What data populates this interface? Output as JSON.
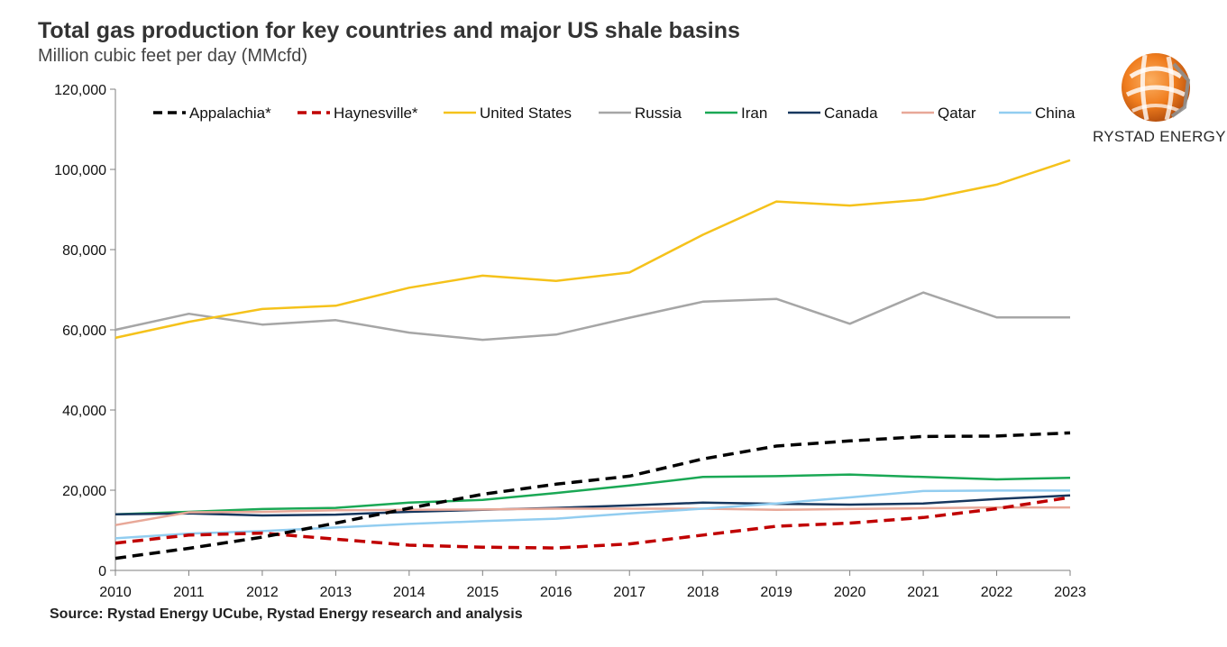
{
  "chart_data": {
    "type": "line",
    "title": "Total gas production for key countries and major US shale basins",
    "subtitle": "Million cubic feet per day (MMcfd)",
    "source": "Source: Rystad Energy UCube, Rystad Energy research and analysis",
    "brand": "RYSTAD ENERGY",
    "x": [
      2010,
      2011,
      2012,
      2013,
      2014,
      2015,
      2016,
      2017,
      2018,
      2019,
      2020,
      2021,
      2022,
      2023
    ],
    "x_tick_labels": [
      "2010",
      "2011",
      "2012",
      "2013",
      "2014",
      "2015",
      "2016",
      "2017",
      "2018",
      "2019",
      "2020",
      "2021",
      "2022",
      "2023"
    ],
    "ylim": [
      0,
      120000
    ],
    "y_ticks": [
      0,
      20000,
      40000,
      60000,
      80000,
      100000,
      120000
    ],
    "y_tick_labels": [
      "0",
      "20,000",
      "40,000",
      "60,000",
      "80,000",
      "100,000",
      "120,000"
    ],
    "grid": false,
    "legend_position": "top",
    "series": [
      {
        "name": "Appalachia*",
        "color": "#000000",
        "dash": true,
        "values": [
          3000,
          5500,
          8300,
          11800,
          15500,
          19000,
          21500,
          23500,
          27800,
          31000,
          32300,
          33400,
          33500,
          34300
        ]
      },
      {
        "name": "Haynesville*",
        "color": "#c00000",
        "dash": true,
        "values": [
          6800,
          8800,
          9300,
          7800,
          6300,
          5800,
          5600,
          6600,
          8800,
          11000,
          11800,
          13200,
          15400,
          18200
        ]
      },
      {
        "name": "United States",
        "color": "#f5c21b",
        "dash": false,
        "values": [
          58000,
          62000,
          65200,
          66000,
          70500,
          73500,
          72200,
          74300,
          83700,
          92000,
          91000,
          92500,
          96200,
          102300
        ]
      },
      {
        "name": "Russia",
        "color": "#a6a6a6",
        "dash": false,
        "values": [
          60000,
          64000,
          61300,
          62400,
          59300,
          57500,
          58800,
          63000,
          67000,
          67700,
          61500,
          69300,
          63100,
          63100
        ]
      },
      {
        "name": "Iran",
        "color": "#1aa855",
        "dash": false,
        "values": [
          14000,
          14600,
          15300,
          15600,
          16900,
          17600,
          19300,
          21200,
          23300,
          23500,
          23900,
          23300,
          22700,
          23100
        ]
      },
      {
        "name": "Canada",
        "color": "#17375e",
        "dash": false,
        "values": [
          14000,
          14200,
          13700,
          13900,
          14600,
          15100,
          15600,
          16200,
          16900,
          16600,
          16400,
          16700,
          17800,
          18700
        ]
      },
      {
        "name": "Qatar",
        "color": "#e8a898",
        "dash": false,
        "values": [
          11300,
          14500,
          14600,
          15000,
          15100,
          15200,
          15400,
          15400,
          15400,
          15100,
          15300,
          15500,
          15700,
          15700
        ]
      },
      {
        "name": "China",
        "color": "#92cdf0",
        "dash": false,
        "values": [
          8000,
          9200,
          9800,
          10700,
          11600,
          12300,
          12900,
          14200,
          15400,
          16700,
          18200,
          19800,
          19900,
          19900
        ]
      }
    ]
  }
}
